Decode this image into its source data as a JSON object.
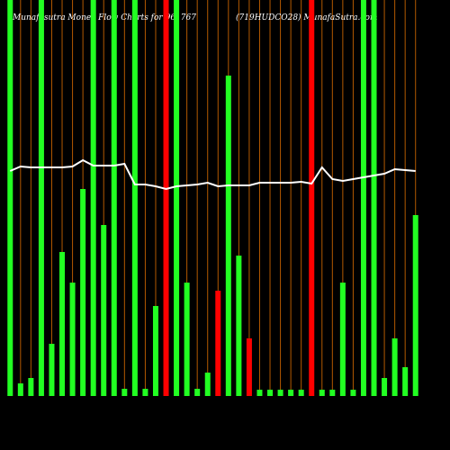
{
  "chart_data": {
    "type": "bar",
    "title": "Munafasutra  Money Flow  Charts for 961767",
    "subtitle": "(719HUDCO28) MunafaSutra.com",
    "categories": [
      null,
      null,
      null,
      null,
      null,
      null,
      null,
      null,
      null,
      null,
      null,
      null,
      null,
      null,
      null,
      null,
      null,
      null,
      null,
      null,
      null,
      null,
      null,
      null,
      null,
      null,
      null,
      null,
      null,
      null,
      null,
      null,
      null,
      null,
      null,
      null,
      null,
      null,
      null,
      null
    ],
    "values": [
      440,
      14,
      20,
      440,
      58,
      160,
      126,
      230,
      440,
      190,
      440,
      8,
      440,
      8,
      100,
      440,
      440,
      126,
      8,
      26,
      117,
      356,
      156,
      64,
      7,
      7,
      7,
      7,
      7,
      440,
      7,
      7,
      126,
      7,
      440,
      440,
      20,
      64,
      32,
      201
    ],
    "colors": [
      "#22ff22",
      "#22ff22",
      "#22ff22",
      "#22ff22",
      "#22ff22",
      "#22ff22",
      "#22ff22",
      "#22ff22",
      "#22ff22",
      "#22ff22",
      "#22ff22",
      "#22ff22",
      "#22ff22",
      "#22ff22",
      "#22ff22",
      "#ff0000",
      "#22ff22",
      "#22ff22",
      "#22ff22",
      "#22ff22",
      "#ff0000",
      "#22ff22",
      "#22ff22",
      "#ff0000",
      "#22ff22",
      "#22ff22",
      "#22ff22",
      "#22ff22",
      "#22ff22",
      "#ff0000",
      "#22ff22",
      "#22ff22",
      "#22ff22",
      "#22ff22",
      "#22ff22",
      "#22ff22",
      "#22ff22",
      "#22ff22",
      "#22ff22",
      "#22ff22"
    ],
    "line": {
      "color": "#ffffff",
      "values": [
        250,
        255,
        254,
        254,
        254,
        254,
        255,
        262,
        256,
        256,
        256,
        258,
        235,
        235,
        233,
        230,
        233,
        234,
        235,
        237,
        233,
        234,
        234,
        234,
        237,
        237,
        237,
        237,
        238,
        236,
        254,
        241,
        239,
        241,
        243,
        245,
        247,
        252,
        251,
        250
      ]
    },
    "gridline_color": "#b35900",
    "ylim": [
      0,
      440
    ]
  }
}
